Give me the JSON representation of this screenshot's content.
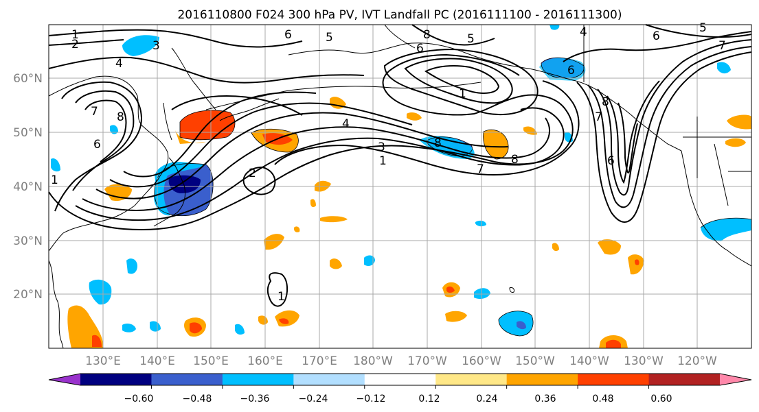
{
  "title": "2016110800 F024 300 hPa PV, IVT Landfall PC (2016111100 - 2016111300)",
  "map": {
    "lat_labels": [
      "20°N",
      "30°N",
      "40°N",
      "50°N",
      "60°N"
    ],
    "lat_values": [
      20,
      30,
      40,
      50,
      60
    ],
    "lon_labels": [
      "130°E",
      "140°E",
      "150°E",
      "160°E",
      "170°E",
      "180°W",
      "170°W",
      "160°W",
      "150°W",
      "140°W",
      "130°W",
      "120°W"
    ],
    "lon_values": [
      130,
      140,
      150,
      160,
      170,
      180,
      190,
      200,
      210,
      220,
      230,
      240
    ],
    "lon_range": [
      120,
      250
    ],
    "lat_range": [
      10,
      70
    ],
    "grid": true,
    "contour_labels": [
      "1",
      "2",
      "3",
      "4",
      "5",
      "6",
      "7",
      "8"
    ]
  },
  "colorbar": {
    "ticks": [
      "−0.60",
      "−0.48",
      "−0.36",
      "−0.24",
      "−0.12",
      "0.12",
      "0.24",
      "0.36",
      "0.48",
      "0.60"
    ],
    "colors": [
      "#9932cc",
      "#000080",
      "#3a5fcd",
      "#00bfff",
      "#b2dfff",
      "#ffffff",
      "#ffe888",
      "#ffa500",
      "#ff4000",
      "#b22222",
      "#ff88aa"
    ],
    "orientation": "horizontal",
    "extend": "both"
  },
  "styles": {
    "text_color": "#000000",
    "tick_label_color": "#808080",
    "grid_color": "#a9a9a9",
    "contour_color": "#000000"
  }
}
